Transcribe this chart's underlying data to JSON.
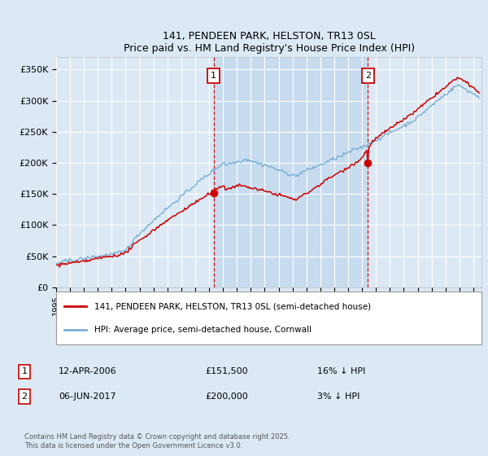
{
  "title": "141, PENDEEN PARK, HELSTON, TR13 0SL",
  "subtitle": "Price paid vs. HM Land Registry's House Price Index (HPI)",
  "ylim": [
    0,
    370000
  ],
  "yticks": [
    0,
    50000,
    100000,
    150000,
    200000,
    250000,
    300000,
    350000
  ],
  "ytick_labels": [
    "£0",
    "£50K",
    "£100K",
    "£150K",
    "£200K",
    "£250K",
    "£300K",
    "£350K"
  ],
  "background_color": "#dce9f5",
  "plot_bg_color": "#dce9f5",
  "shade_color": "#c8dcf0",
  "grid_color": "#ffffff",
  "red_line_color": "#cc0000",
  "blue_line_color": "#7aafd4",
  "idx1": 136,
  "val1": 151500,
  "idx2": 269,
  "val2": 200000,
  "legend_label_red": "141, PENDEEN PARK, HELSTON, TR13 0SL (semi-detached house)",
  "legend_label_blue": "HPI: Average price, semi-detached house, Cornwall",
  "annotation1_date": "12-APR-2006",
  "annotation1_price": "£151,500",
  "annotation1_hpi": "16% ↓ HPI",
  "annotation2_date": "06-JUN-2017",
  "annotation2_price": "£200,000",
  "annotation2_hpi": "3% ↓ HPI",
  "footnote": "Contains HM Land Registry data © Crown copyright and database right 2025.\nThis data is licensed under the Open Government Licence v3.0.",
  "xstart_year": 1995,
  "xend_year": 2025
}
